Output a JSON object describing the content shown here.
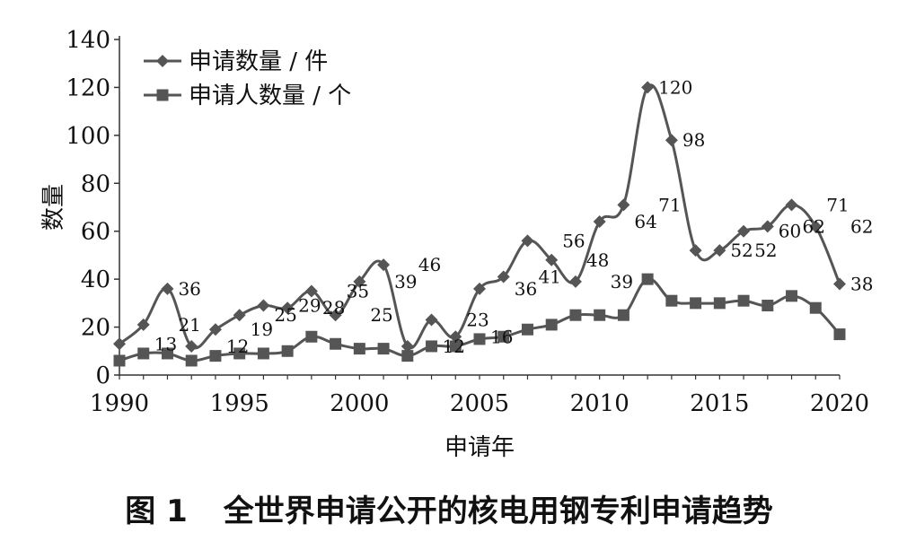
{
  "caption": {
    "figure_no": "图 1",
    "text": "全世界申请公开的核电用钢专利申请趋势"
  },
  "chart_data": {
    "type": "line",
    "xlabel": "申请年",
    "ylabel": "数量",
    "xlim": [
      1990,
      2020
    ],
    "ylim": [
      0,
      140
    ],
    "xticks": [
      1990,
      1995,
      2000,
      2005,
      2010,
      2015,
      2020
    ],
    "yticks": [
      0,
      20,
      40,
      60,
      80,
      100,
      120,
      140
    ],
    "grid": false,
    "legend": "top-left",
    "x": [
      1990,
      1991,
      1992,
      1993,
      1994,
      1995,
      1996,
      1997,
      1998,
      1999,
      2000,
      2001,
      2002,
      2003,
      2004,
      2005,
      2006,
      2007,
      2008,
      2009,
      2010,
      2011,
      2012,
      2013,
      2014,
      2015,
      2016,
      2017,
      2018,
      2019,
      2020
    ],
    "series": [
      {
        "name": "申请数量 / 件",
        "marker": "diamond",
        "color": "#555555",
        "values": [
          13,
          21,
          36,
          12,
          19,
          25,
          29,
          28,
          35,
          25,
          39,
          46,
          12,
          23,
          16,
          36,
          41,
          56,
          48,
          39,
          64,
          71,
          120,
          98,
          52,
          52,
          60,
          62,
          71,
          62,
          38
        ]
      },
      {
        "name": "申请人数量 / 个",
        "marker": "square",
        "color": "#555555",
        "values": [
          6,
          9,
          9,
          6,
          8,
          9,
          9,
          10,
          16,
          13,
          11,
          11,
          8,
          12,
          12,
          15,
          16,
          19,
          21,
          25,
          25,
          25,
          40,
          31,
          30,
          30,
          31,
          29,
          33,
          28,
          17
        ]
      }
    ],
    "data_labels": [
      {
        "text": "13",
        "x": 1991,
        "y": 13
      },
      {
        "text": "36",
        "x": 1992,
        "y": 36
      },
      {
        "text": "21",
        "x": 1992,
        "y": 21
      },
      {
        "text": "12",
        "x": 1994,
        "y": 12
      },
      {
        "text": "19",
        "x": 1995,
        "y": 19
      },
      {
        "text": "25",
        "x": 1996,
        "y": 25
      },
      {
        "text": "29",
        "x": 1997,
        "y": 29
      },
      {
        "text": "28",
        "x": 1998,
        "y": 28
      },
      {
        "text": "35",
        "x": 1999,
        "y": 35
      },
      {
        "text": "25",
        "x": 2000,
        "y": 25
      },
      {
        "text": "39",
        "x": 2001,
        "y": 39
      },
      {
        "text": "46",
        "x": 2002,
        "y": 46
      },
      {
        "text": "12",
        "x": 2003,
        "y": 12
      },
      {
        "text": "23",
        "x": 2004,
        "y": 23
      },
      {
        "text": "16",
        "x": 2005,
        "y": 16
      },
      {
        "text": "36",
        "x": 2006,
        "y": 36
      },
      {
        "text": "41",
        "x": 2007,
        "y": 41
      },
      {
        "text": "56",
        "x": 2008,
        "y": 56
      },
      {
        "text": "48",
        "x": 2009,
        "y": 48
      },
      {
        "text": "39",
        "x": 2010,
        "y": 39
      },
      {
        "text": "64",
        "x": 2011,
        "y": 64
      },
      {
        "text": "71",
        "x": 2012,
        "y": 71
      },
      {
        "text": "120",
        "x": 2012,
        "y": 120
      },
      {
        "text": "98",
        "x": 2013,
        "y": 98
      },
      {
        "text": "52",
        "x": 2015,
        "y": 52
      },
      {
        "text": "52",
        "x": 2016,
        "y": 52
      },
      {
        "text": "60",
        "x": 2017,
        "y": 60
      },
      {
        "text": "62",
        "x": 2018,
        "y": 62
      },
      {
        "text": "71",
        "x": 2019,
        "y": 71
      },
      {
        "text": "62",
        "x": 2020,
        "y": 62
      },
      {
        "text": "38",
        "x": 2020,
        "y": 38
      }
    ]
  }
}
